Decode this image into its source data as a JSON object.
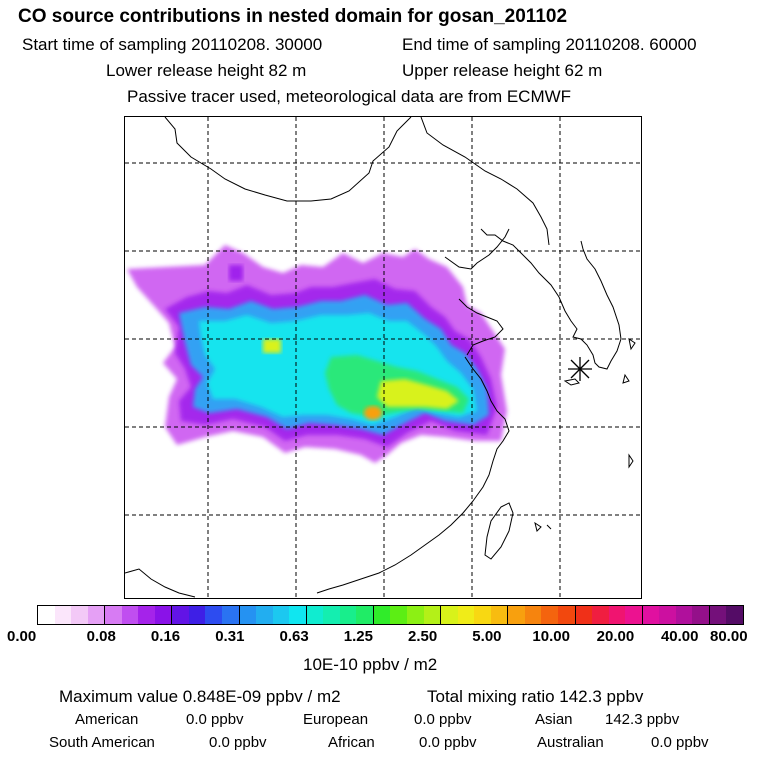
{
  "header": {
    "title": "CO  source contributions in nested domain for gosan_201102",
    "start_label": "Start time of sampling 20110208. 30000",
    "end_label": "End time of sampling 20110208. 60000",
    "lower_label": "Lower release height   82 m",
    "upper_label": "Upper release height   62 m",
    "note": "Passive tracer used, meteorological data are from ECMWF"
  },
  "colorbar": {
    "ticks": [
      "0.00",
      "0.08",
      "0.16",
      "0.31",
      "0.63",
      "1.25",
      "2.50",
      "5.00",
      "10.00",
      "20.00",
      "40.00",
      "80.00"
    ],
    "unit": "10E-10 ppbv / m2",
    "colors": [
      "#ffffff",
      "#fbe6fb",
      "#f3c9f7",
      "#e5a0f5",
      "#d77bf3",
      "#c04ef0",
      "#a523ea",
      "#8a12e8",
      "#6214e6",
      "#3e1fe6",
      "#2d4cf0",
      "#2a73f2",
      "#2592f2",
      "#22aef0",
      "#1cc8f0",
      "#10e6f0",
      "#10ecd0",
      "#14eeb0",
      "#18ee8c",
      "#20ec66",
      "#30ec2a",
      "#5cee14",
      "#8cf014",
      "#b4f018",
      "#d8f21a",
      "#f0ec18",
      "#f8d812",
      "#f8bc10",
      "#f8a00e",
      "#f6840e",
      "#f4640e",
      "#f2480e",
      "#f03018",
      "#f01e40",
      "#f01470",
      "#ec1290",
      "#e010a0",
      "#cc10a0",
      "#b0109c",
      "#94108a",
      "#74107a",
      "#540c66"
    ]
  },
  "stats": {
    "max_label": "Maximum value  0.848E-09 ppbv / m2",
    "total_label": "Total mixing ratio      142.3 ppbv",
    "american_label": "American",
    "american_value": "0.0 ppbv",
    "european_label": "European",
    "european_value": "0.0 ppbv",
    "asian_label": "Asian",
    "asian_value": "142.3 ppbv",
    "south_american_label": "South American",
    "south_american_value": "0.0 ppbv",
    "african_label": "African",
    "african_value": "0.0 ppbv",
    "australian_label": "Australian",
    "australian_value": "0.0 ppbv"
  },
  "map": {
    "receptor_marker": "asterisk-icon",
    "plume_colors": {
      "outer": "#c84ef0",
      "edge": "#a020ec",
      "mid": "#2ea8f4",
      "inner": "#12e4ee",
      "core": "#2ce87a",
      "hot": "#d8f21a",
      "peak": "#f8a00e"
    }
  }
}
